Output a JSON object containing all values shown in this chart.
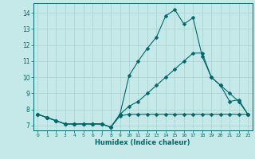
{
  "xlabel": "Humidex (Indice chaleur)",
  "bg_color": "#c5e8e8",
  "line_color": "#006868",
  "grid_color": "#aad0d0",
  "xlim": [
    -0.5,
    23.5
  ],
  "ylim": [
    6.7,
    14.6
  ],
  "xticks": [
    0,
    1,
    2,
    3,
    4,
    5,
    6,
    7,
    8,
    9,
    10,
    11,
    12,
    13,
    14,
    15,
    16,
    17,
    18,
    19,
    20,
    21,
    22,
    23
  ],
  "yticks": [
    7,
    8,
    9,
    10,
    11,
    12,
    13,
    14
  ],
  "line1_x": [
    0,
    1,
    2,
    3,
    4,
    5,
    6,
    7,
    8,
    9,
    10,
    11,
    12,
    13,
    14,
    15,
    16,
    17,
    18,
    19,
    20,
    21,
    22,
    23
  ],
  "line1_y": [
    7.7,
    7.5,
    7.3,
    7.1,
    7.1,
    7.1,
    7.1,
    7.1,
    6.9,
    7.6,
    7.7,
    7.7,
    7.7,
    7.7,
    7.7,
    7.7,
    7.7,
    7.7,
    7.7,
    7.7,
    7.7,
    7.7,
    7.7,
    7.7
  ],
  "line2_x": [
    0,
    1,
    2,
    3,
    4,
    5,
    6,
    7,
    8,
    9,
    10,
    11,
    12,
    13,
    14,
    15,
    16,
    17,
    18,
    19,
    20,
    21,
    22,
    23
  ],
  "line2_y": [
    7.7,
    7.5,
    7.3,
    7.1,
    7.1,
    7.1,
    7.1,
    7.1,
    6.9,
    7.7,
    8.2,
    8.5,
    9.0,
    9.5,
    10.0,
    10.5,
    11.0,
    11.5,
    11.5,
    10.0,
    9.5,
    9.0,
    8.5,
    7.7
  ],
  "line3_x": [
    0,
    1,
    2,
    3,
    4,
    5,
    6,
    7,
    8,
    9,
    10,
    11,
    12,
    13,
    14,
    15,
    16,
    17,
    18,
    19,
    20,
    21,
    22,
    23
  ],
  "line3_y": [
    7.7,
    7.5,
    7.3,
    7.1,
    7.1,
    7.1,
    7.1,
    7.1,
    6.9,
    7.7,
    10.1,
    11.0,
    11.8,
    12.5,
    13.8,
    14.2,
    13.3,
    13.7,
    11.3,
    10.0,
    9.5,
    8.5,
    8.6,
    7.7
  ]
}
